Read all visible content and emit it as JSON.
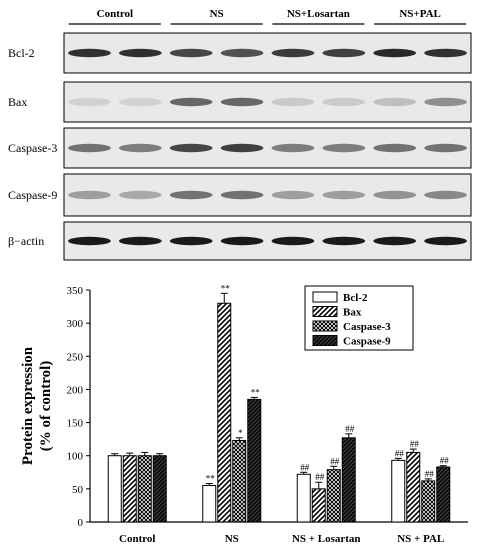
{
  "colors": {
    "ink": "#000000",
    "paper": "#ffffff"
  },
  "blot": {
    "groups": [
      "Control",
      "NS",
      "NS+Losartan",
      "NS+PAL"
    ],
    "rows": [
      {
        "label": "Bcl-2",
        "intensity": [
          0.85,
          0.85,
          0.75,
          0.7,
          0.8,
          0.78,
          0.88,
          0.85
        ]
      },
      {
        "label": "Bax",
        "intensity": [
          0.12,
          0.12,
          0.6,
          0.6,
          0.15,
          0.15,
          0.2,
          0.42
        ]
      },
      {
        "label": "Caspase-3",
        "intensity": [
          0.55,
          0.5,
          0.75,
          0.78,
          0.5,
          0.5,
          0.55,
          0.55
        ]
      },
      {
        "label": "Caspase-9",
        "intensity": [
          0.35,
          0.3,
          0.55,
          0.55,
          0.35,
          0.35,
          0.4,
          0.45
        ]
      },
      {
        "label": "β−actin",
        "intensity": [
          0.95,
          0.95,
          0.95,
          0.95,
          0.95,
          0.95,
          0.95,
          0.95
        ]
      }
    ]
  },
  "chart_data": {
    "type": "bar",
    "categories": [
      "Control",
      "NS",
      "NS + Losartan",
      "NS + PAL"
    ],
    "series": [
      {
        "name": "Bcl-2",
        "pattern": "blank",
        "values": [
          100,
          55,
          72,
          93
        ],
        "errors": [
          3,
          3,
          3,
          3
        ],
        "marks": [
          "",
          "**",
          "##",
          "##"
        ]
      },
      {
        "name": "Bax",
        "pattern": "diagonal",
        "values": [
          100,
          330,
          50,
          105
        ],
        "errors": [
          4,
          15,
          10,
          5
        ],
        "marks": [
          "",
          "**",
          "##",
          "##"
        ]
      },
      {
        "name": "Caspase-3",
        "pattern": "crosshatch",
        "values": [
          100,
          123,
          79,
          62
        ],
        "errors": [
          5,
          4,
          5,
          3
        ],
        "marks": [
          "",
          "*",
          "##",
          "##"
        ]
      },
      {
        "name": "Caspase-9",
        "pattern": "dense",
        "values": [
          100,
          185,
          127,
          83
        ],
        "errors": [
          3,
          3,
          6,
          2
        ],
        "marks": [
          "",
          "**",
          "##",
          "##"
        ]
      }
    ],
    "ylabel": "Protein expression (% of control)",
    "ylabel_lines": [
      "Protein expression",
      "(% of control)"
    ],
    "ylim": [
      0,
      350
    ],
    "yticks": [
      0,
      50,
      100,
      150,
      200,
      250,
      300,
      350
    ],
    "legend_position": "top-right",
    "grid": false
  }
}
